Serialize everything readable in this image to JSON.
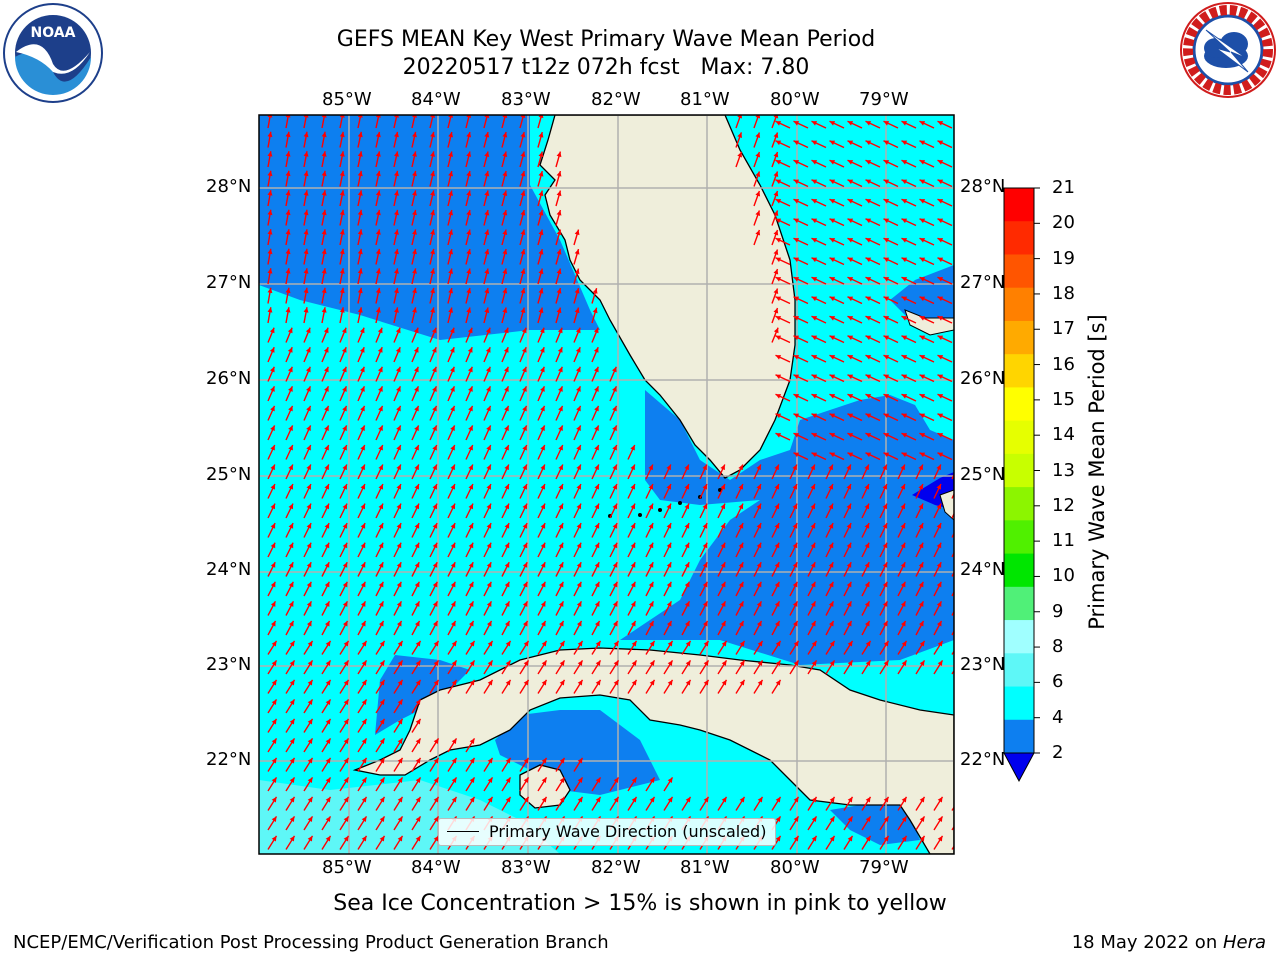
{
  "header": {
    "title_line1": "GEFS MEAN Key West Primary Wave Mean Period",
    "title_line2": "20220517 t12z 072h fcst   Max: 7.80"
  },
  "logos": {
    "left": {
      "icon": "noaa-logo-icon",
      "text": "NOAA",
      "ring_text": "NATIONAL OCEANIC AND ATMOSPHERIC ADMINISTRATION · U.S. DEPARTMENT OF COMMERCE"
    },
    "right": {
      "icon": "nws-logo-icon",
      "ring_text": "NATIONAL WEATHER SERVICE"
    }
  },
  "map": {
    "lon_ticks": [
      "85°W",
      "84°W",
      "83°W",
      "82°W",
      "81°W",
      "80°W",
      "79°W"
    ],
    "lat_ticks": [
      "28°N",
      "27°N",
      "26°N",
      "25°N",
      "24°N",
      "23°N",
      "22°N"
    ],
    "legend_label": "Primary Wave Direction (unscaled)",
    "colors": {
      "band_2_4": "#0d7ff0",
      "band_4_6": "#00ffff",
      "band_6_8": "#5ef7f7",
      "land": "#efeedb",
      "arrow": "#ff0000",
      "grid": "#b0b0b0"
    }
  },
  "colorbar": {
    "label": "Primary Wave Mean Period [s]",
    "ticks": [
      "21",
      "20",
      "19",
      "18",
      "17",
      "16",
      "15",
      "14",
      "13",
      "12",
      "11",
      "10",
      "9",
      "8",
      "6",
      "4",
      "2"
    ],
    "colors": [
      "#ff0000",
      "#ff2a00",
      "#ff5500",
      "#ff8000",
      "#ffaa00",
      "#ffd500",
      "#ffff00",
      "#e6ff00",
      "#c8ff00",
      "#8cf500",
      "#50f000",
      "#00e600",
      "#50f078",
      "#a0ffff",
      "#5ef7f7",
      "#00ffff",
      "#0d7ff0"
    ],
    "under_color": "#0000ee"
  },
  "footer": {
    "note": "Sea Ice Concentration > 15% is shown in pink to yellow",
    "left": "NCEP/EMC/Verification Post Processing Product Generation Branch",
    "right_date": "18 May 2022 on ",
    "right_machine": "Hera"
  }
}
